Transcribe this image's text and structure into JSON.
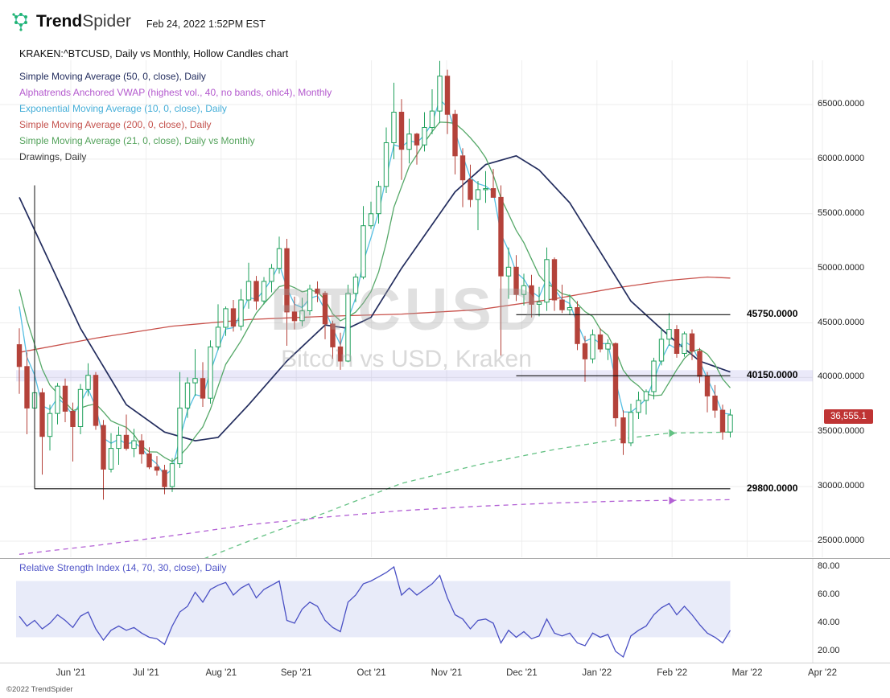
{
  "header": {
    "logo": {
      "bold": "Trend",
      "light": "Spider",
      "icon": "molecule-icon"
    },
    "datetime": "Feb 24, 2022 1:52PM EST"
  },
  "title": "KRAKEN:^BTCUSD, Daily vs Monthly, Hollow Candles chart",
  "legend": {
    "items": [
      {
        "id": "sma-50",
        "label": "Simple Moving Average (50, 0, close), Daily",
        "color": "#232d5e"
      },
      {
        "id": "vwap-monthly",
        "label": "Alphatrends Anchored VWAP (highest vol., 40, no bands, ohlc4), Monthly",
        "color": "#b45ace"
      },
      {
        "id": "ema-10",
        "label": "Exponential Moving Average (10, 0, close), Daily",
        "color": "#45aed8"
      },
      {
        "id": "sma-200",
        "label": "Simple Moving Average (200, 0, close), Daily",
        "color": "#c4524d"
      },
      {
        "id": "sma-21",
        "label": "Simple Moving Average (21, 0, close), Daily vs Monthly",
        "color": "#54a35c"
      },
      {
        "id": "drawings",
        "label": "Drawings, Daily",
        "color": "#3a3a3a"
      }
    ]
  },
  "watermark": {
    "symbol": "BTCUSD",
    "subtitle": "Bitcoin vs USD, Kraken"
  },
  "last_price": {
    "value": "36,555.1",
    "color": "#bf3434"
  },
  "rsi": {
    "label": "Relative Strength Index (14, 70, 30, close), Daily"
  },
  "footer": {
    "copyright": "©2022 TrendSpider"
  },
  "chart_data": {
    "type": "candlestick",
    "style": "hollow_candles",
    "symbol": "KRAKEN:^BTCUSD",
    "timeframe": "Daily vs Monthly",
    "last_close": 36555.1,
    "candle_colors": {
      "up": "#1fa05c",
      "down": "#b4423a"
    },
    "x_axis": {
      "labels": [
        "Jun '21",
        "Jul '21",
        "Aug '21",
        "Sep '21",
        "Oct '21",
        "Nov '21",
        "Dec '21",
        "Jan '22",
        "Feb '22",
        "Mar '22",
        "Apr '22"
      ]
    },
    "y_axis": {
      "ticks": [
        "65000.0000",
        "60000.0000",
        "55000.0000",
        "50000.0000",
        "45000.0000",
        "40000.0000",
        "35000.0000",
        "30000.0000",
        "25000.0000"
      ],
      "min": 23000,
      "max": 69500
    },
    "candles": [
      [
        43000,
        44500,
        38500,
        41000
      ],
      [
        41000,
        42300,
        34800,
        37200
      ],
      [
        37200,
        39600,
        36000,
        38600
      ],
      [
        38600,
        39000,
        31100,
        34600
      ],
      [
        34600,
        37500,
        33300,
        36700
      ],
      [
        36700,
        39500,
        35700,
        39200
      ],
      [
        39200,
        39900,
        35900,
        36900
      ],
      [
        36900,
        37700,
        32300,
        35500
      ],
      [
        35500,
        39400,
        34800,
        38900
      ],
      [
        38900,
        41300,
        38300,
        40200
      ],
      [
        40200,
        40500,
        35200,
        35600
      ],
      [
        35600,
        36100,
        28800,
        31600
      ],
      [
        31600,
        34900,
        31300,
        33500
      ],
      [
        33500,
        35500,
        32000,
        34700
      ],
      [
        34700,
        36600,
        33300,
        33500
      ],
      [
        33500,
        35300,
        32700,
        34200
      ],
      [
        34200,
        34800,
        32100,
        33000
      ],
      [
        33000,
        33600,
        31600,
        31800
      ],
      [
        31800,
        32800,
        31000,
        31500
      ],
      [
        31500,
        32000,
        29300,
        30000
      ],
      [
        30000,
        32600,
        29500,
        32100
      ],
      [
        32100,
        40500,
        31700,
        37200
      ],
      [
        37200,
        40000,
        36300,
        39500
      ],
      [
        39500,
        42600,
        38300,
        39900
      ],
      [
        39900,
        41400,
        37300,
        38100
      ],
      [
        38100,
        43400,
        37600,
        42800
      ],
      [
        42800,
        46700,
        42500,
        44600
      ],
      [
        44600,
        46500,
        43800,
        46300
      ],
      [
        46300,
        47100,
        44200,
        44700
      ],
      [
        44700,
        48100,
        44300,
        47100
      ],
      [
        47100,
        50500,
        46300,
        48800
      ],
      [
        48800,
        49300,
        46200,
        47000
      ],
      [
        47000,
        49200,
        46700,
        48800
      ],
      [
        48800,
        50400,
        47800,
        50000
      ],
      [
        50000,
        52900,
        49500,
        51800
      ],
      [
        51800,
        52700,
        42900,
        46000
      ],
      [
        46000,
        47400,
        44400,
        45200
      ],
      [
        45200,
        47300,
        44700,
        46100
      ],
      [
        46100,
        48500,
        45700,
        48100
      ],
      [
        48100,
        48800,
        46900,
        47700
      ],
      [
        47700,
        47900,
        43500,
        44900
      ],
      [
        44900,
        45200,
        41700,
        42800
      ],
      [
        42800,
        44100,
        40700,
        41500
      ],
      [
        41500,
        48500,
        41400,
        47700
      ],
      [
        47700,
        49500,
        46900,
        49200
      ],
      [
        49200,
        55700,
        49000,
        53900
      ],
      [
        53900,
        56100,
        53600,
        55000
      ],
      [
        55000,
        58000,
        54100,
        57500
      ],
      [
        57500,
        62900,
        56900,
        61500
      ],
      [
        61500,
        67000,
        60000,
        64300
      ],
      [
        64300,
        65500,
        58100,
        60900
      ],
      [
        60900,
        63700,
        59600,
        62300
      ],
      [
        62300,
        62400,
        59500,
        61300
      ],
      [
        61300,
        64300,
        60700,
        62900
      ],
      [
        62900,
        66400,
        62300,
        64400
      ],
      [
        64400,
        69000,
        63300,
        67600
      ],
      [
        67600,
        68200,
        62300,
        64100
      ],
      [
        64100,
        64500,
        58600,
        60300
      ],
      [
        60300,
        61000,
        55600,
        58100
      ],
      [
        58100,
        59500,
        55600,
        56300
      ],
      [
        56300,
        58000,
        53500,
        57200
      ],
      [
        57200,
        58900,
        56000,
        57300
      ],
      [
        57300,
        59100,
        56500,
        56500
      ],
      [
        56500,
        57600,
        42000,
        49300
      ],
      [
        49300,
        51900,
        47200,
        50100
      ],
      [
        50100,
        51200,
        47000,
        47600
      ],
      [
        47600,
        49500,
        46600,
        48400
      ],
      [
        48400,
        49400,
        45500,
        46700
      ],
      [
        46700,
        48300,
        45600,
        46900
      ],
      [
        46900,
        51900,
        46100,
        50800
      ],
      [
        50800,
        51000,
        46100,
        47100
      ],
      [
        47100,
        48500,
        45900,
        46200
      ],
      [
        46200,
        47600,
        45700,
        46400
      ],
      [
        46400,
        47000,
        42500,
        43100
      ],
      [
        43100,
        43800,
        39600,
        41700
      ],
      [
        41700,
        44400,
        41300,
        43900
      ],
      [
        43900,
        44500,
        42300,
        42600
      ],
      [
        42600,
        43500,
        41600,
        43100
      ],
      [
        43100,
        43200,
        35500,
        36300
      ],
      [
        36300,
        37000,
        32900,
        34000
      ],
      [
        34000,
        37600,
        33700,
        36800
      ],
      [
        36800,
        38700,
        36200,
        37900
      ],
      [
        37900,
        38900,
        36600,
        38700
      ],
      [
        38700,
        41800,
        38000,
        41500
      ],
      [
        41500,
        44500,
        41100,
        43500
      ],
      [
        43500,
        45900,
        42900,
        44400
      ],
      [
        44400,
        44800,
        41800,
        42200
      ],
      [
        42200,
        44200,
        41900,
        44000
      ],
      [
        44000,
        44400,
        41600,
        42400
      ],
      [
        42400,
        42700,
        39500,
        40100
      ],
      [
        40100,
        40500,
        36800,
        38300
      ],
      [
        38300,
        39300,
        36300,
        37000
      ],
      [
        37000,
        37500,
        34300,
        35000
      ],
      [
        35000,
        37100,
        34500,
        36555
      ]
    ],
    "overlays": [
      {
        "id": "sma21-monthly",
        "label": "SMA (21) Monthly",
        "color": "#63c183",
        "style": "dashed",
        "points": [
          [
            22,
            22800
          ],
          [
            30,
            25000
          ],
          [
            40,
            27600
          ],
          [
            50,
            30300
          ],
          [
            60,
            32000
          ],
          [
            70,
            33400
          ],
          [
            78,
            34300
          ],
          [
            85,
            34900
          ],
          [
            93,
            35000
          ]
        ],
        "arrow_index": 85,
        "arrow_price": 34900
      },
      {
        "id": "vwap-monthly",
        "label": "Alphatrends Anchored VWAP, Monthly",
        "color": "#b25fd4",
        "style": "dashed",
        "points": [
          [
            0,
            23800
          ],
          [
            10,
            24600
          ],
          [
            20,
            25500
          ],
          [
            30,
            26500
          ],
          [
            40,
            27200
          ],
          [
            50,
            27800
          ],
          [
            60,
            28200
          ],
          [
            70,
            28500
          ],
          [
            80,
            28700
          ],
          [
            93,
            28800
          ]
        ],
        "arrow_index": 85,
        "arrow_price": 28720
      },
      {
        "id": "sma-200",
        "label": "SMA (200) Daily",
        "color": "#c8504a",
        "style": "solid",
        "points": [
          [
            0,
            42300
          ],
          [
            10,
            43600
          ],
          [
            20,
            44700
          ],
          [
            30,
            45300
          ],
          [
            40,
            45600
          ],
          [
            50,
            45800
          ],
          [
            60,
            46200
          ],
          [
            70,
            47200
          ],
          [
            78,
            48200
          ],
          [
            85,
            48900
          ],
          [
            90,
            49200
          ],
          [
            93,
            49100
          ]
        ]
      },
      {
        "id": "sma-50",
        "label": "SMA (50) Daily",
        "color": "#232d5e",
        "style": "solid",
        "width": 1.7,
        "points": [
          [
            0,
            56500
          ],
          [
            3,
            52000
          ],
          [
            8,
            44500
          ],
          [
            14,
            37500
          ],
          [
            19,
            35000
          ],
          [
            23,
            34200
          ],
          [
            26,
            34500
          ],
          [
            30,
            37500
          ],
          [
            35,
            41500
          ],
          [
            40,
            44800
          ],
          [
            43,
            44500
          ],
          [
            46,
            45500
          ],
          [
            50,
            50000
          ],
          [
            57,
            57000
          ],
          [
            61,
            59500
          ],
          [
            65,
            60300
          ],
          [
            68,
            59000
          ],
          [
            72,
            56000
          ],
          [
            76,
            51500
          ],
          [
            80,
            47000
          ],
          [
            85,
            43800
          ],
          [
            89,
            41500
          ],
          [
            93,
            40500
          ]
        ]
      },
      {
        "id": "ema-10",
        "label": "EMA (10) Daily",
        "color": "#55bfe3",
        "style": "solid",
        "derive": "ema",
        "period": 3,
        "seed": 52000
      },
      {
        "id": "sma-21",
        "label": "SMA (21) Daily",
        "color": "#55a868",
        "style": "solid",
        "derive": "sma",
        "period": 7,
        "seed_closes": [
          57000,
          54000,
          50500,
          47000,
          44500,
          42500
        ]
      }
    ],
    "drawings": {
      "h_lines": [
        {
          "price": 45750,
          "label": "45750.0000",
          "from_index": 65,
          "to_index": 93
        },
        {
          "price": 40150,
          "label": "40150.0000",
          "from_index": 65,
          "to_index": 93
        },
        {
          "price": 29800,
          "label": "29800.0000",
          "from_index": 2,
          "to_index": 93
        }
      ],
      "v_line": {
        "index": 2,
        "from_price": 57600,
        "to_price": 29800
      },
      "band": {
        "price": 40150,
        "color": "rgba(123,116,220,0.16)"
      }
    },
    "rsi": {
      "values": [
        45,
        38,
        42,
        36,
        40,
        46,
        42,
        37,
        45,
        48,
        36,
        28,
        35,
        38,
        35,
        37,
        33,
        30,
        29,
        25,
        38,
        48,
        52,
        62,
        55,
        64,
        67,
        69,
        60,
        65,
        68,
        58,
        64,
        67,
        70,
        42,
        40,
        50,
        55,
        52,
        42,
        37,
        34,
        55,
        60,
        68,
        70,
        73,
        76,
        80,
        60,
        65,
        60,
        64,
        68,
        74,
        58,
        46,
        43,
        36,
        42,
        43,
        40,
        26,
        35,
        30,
        34,
        29,
        31,
        43,
        33,
        31,
        33,
        26,
        24,
        33,
        30,
        32,
        20,
        16,
        31,
        35,
        38,
        46,
        51,
        54,
        46,
        52,
        46,
        39,
        33,
        30,
        26,
        35
      ],
      "band": [
        30,
        70
      ],
      "ticks": [
        "80.00",
        "60.00",
        "40.00",
        "20.00"
      ],
      "color": "#4a50c4",
      "band_fill": "#e8ebf9"
    }
  }
}
